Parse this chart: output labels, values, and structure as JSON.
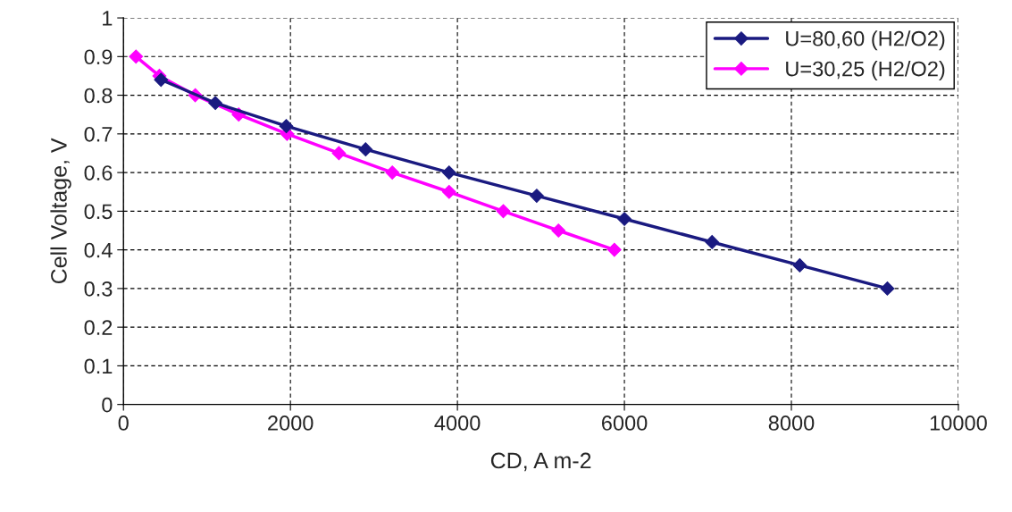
{
  "chart_data": {
    "type": "line",
    "xlabel": "CD, A m-2",
    "ylabel": "Cell Voltage, V",
    "xlim": [
      0,
      10000
    ],
    "xticks": [
      0,
      2000,
      4000,
      6000,
      8000,
      10000
    ],
    "ylim": [
      0,
      1
    ],
    "yticks": [
      0,
      0.1,
      0.2,
      0.3,
      0.4,
      0.5,
      0.6,
      0.7,
      0.8,
      0.9,
      1
    ],
    "grid": true,
    "legend": "top right",
    "marker": "diamond",
    "line_style": "solid",
    "series": [
      {
        "name": "U=80,60 (H2/O2)",
        "color": "#1a1a80",
        "x": [
          450,
          1100,
          1950,
          2900,
          3900,
          4950,
          6000,
          7050,
          8100,
          9150
        ],
        "values": [
          0.84,
          0.78,
          0.72,
          0.66,
          0.6,
          0.54,
          0.48,
          0.42,
          0.36,
          0.3
        ]
      },
      {
        "name": "U=30,25 (H2/O2)",
        "color": "#ff00ff",
        "x": [
          150,
          430,
          860,
          1380,
          1960,
          2580,
          3220,
          3900,
          4550,
          5210,
          5880
        ],
        "values": [
          0.9,
          0.85,
          0.8,
          0.75,
          0.7,
          0.65,
          0.6,
          0.55,
          0.5,
          0.45,
          0.4
        ]
      }
    ]
  }
}
